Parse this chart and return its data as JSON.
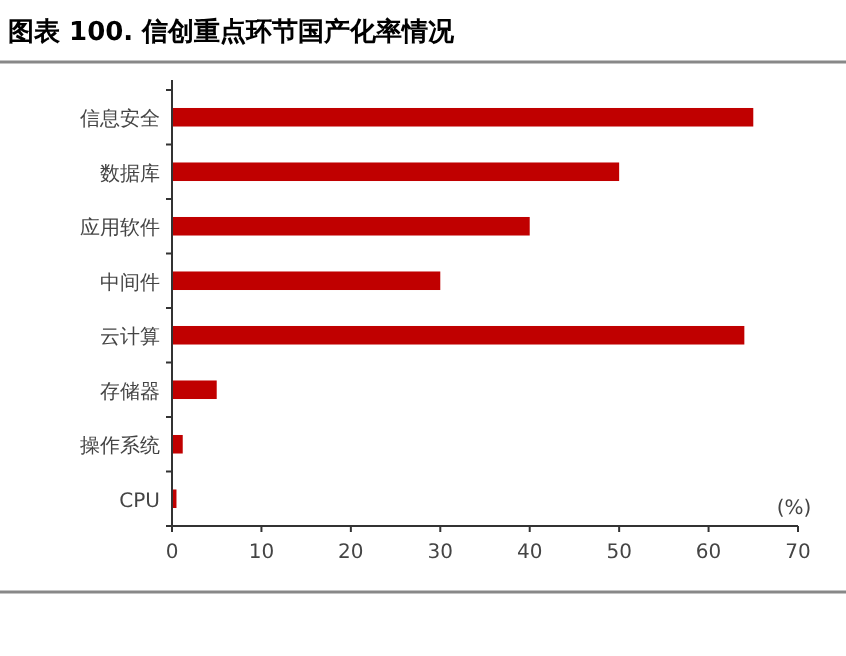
{
  "chart_data": {
    "type": "bar",
    "orientation": "horizontal",
    "title": "图表 100. 信创重点环节国产化率情况",
    "xlabel": "(%)",
    "categories": [
      "信息安全",
      "数据库",
      "应用软件",
      "中间件",
      "云计算",
      "存储器",
      "操作系统",
      "CPU"
    ],
    "values": [
      65,
      50,
      40,
      30,
      64,
      5,
      1.2,
      0.5
    ],
    "color": "#c00000",
    "xlim": [
      0,
      70
    ],
    "xticks": [
      0,
      10,
      20,
      30,
      40,
      50,
      60,
      70
    ]
  }
}
